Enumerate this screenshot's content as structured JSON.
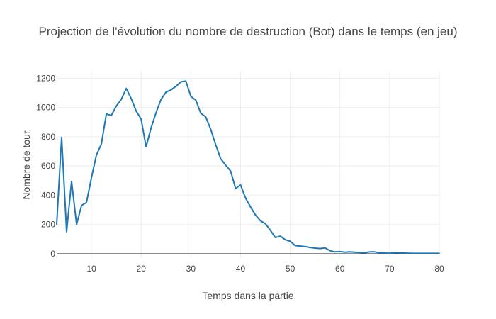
{
  "chart_data": {
    "type": "line",
    "title": "Projection de l'évolution du nombre de destruction (Bot) dans le temps (en jeu)",
    "xlabel": "Temps dans la partie",
    "ylabel": "Nombre de tour",
    "xlim": [
      3,
      80
    ],
    "ylim": [
      -30,
      1250
    ],
    "x_ticks": [
      10,
      20,
      30,
      40,
      50,
      60,
      70,
      80
    ],
    "y_ticks": [
      0,
      200,
      400,
      600,
      800,
      1000,
      1200
    ],
    "grid": true,
    "legend": "none",
    "colors": {
      "line": "#1f77b4",
      "grid": "#eeeeee",
      "zeroline": "#444444",
      "text": "#444444"
    },
    "series": [
      {
        "x": [
          3,
          4,
          5,
          6,
          7,
          8,
          9,
          10,
          11,
          12,
          13,
          14,
          15,
          16,
          17,
          18,
          19,
          20,
          21,
          22,
          23,
          24,
          25,
          26,
          27,
          28,
          29,
          30,
          31,
          32,
          33,
          34,
          35,
          36,
          37,
          38,
          39,
          40,
          41,
          42,
          43,
          44,
          45,
          46,
          47,
          48,
          49,
          50,
          51,
          52,
          53,
          54,
          55,
          56,
          57,
          58,
          59,
          60,
          61,
          62,
          63,
          64,
          65,
          66,
          67,
          68,
          69,
          70,
          71,
          72,
          73,
          74,
          75,
          76,
          77,
          78,
          79,
          80
        ],
        "values": [
          200,
          795,
          150,
          495,
          200,
          330,
          350,
          520,
          675,
          750,
          955,
          945,
          1010,
          1055,
          1130,
          1060,
          975,
          920,
          730,
          860,
          965,
          1055,
          1105,
          1120,
          1145,
          1175,
          1180,
          1075,
          1050,
          960,
          935,
          850,
          745,
          650,
          605,
          565,
          445,
          470,
          380,
          320,
          265,
          225,
          205,
          160,
          110,
          120,
          95,
          85,
          55,
          52,
          48,
          42,
          38,
          35,
          40,
          20,
          12,
          14,
          10,
          12,
          10,
          8,
          6,
          12,
          12,
          5,
          4,
          3,
          7,
          5,
          4,
          3,
          2,
          2,
          2,
          2,
          2,
          2
        ]
      }
    ]
  }
}
